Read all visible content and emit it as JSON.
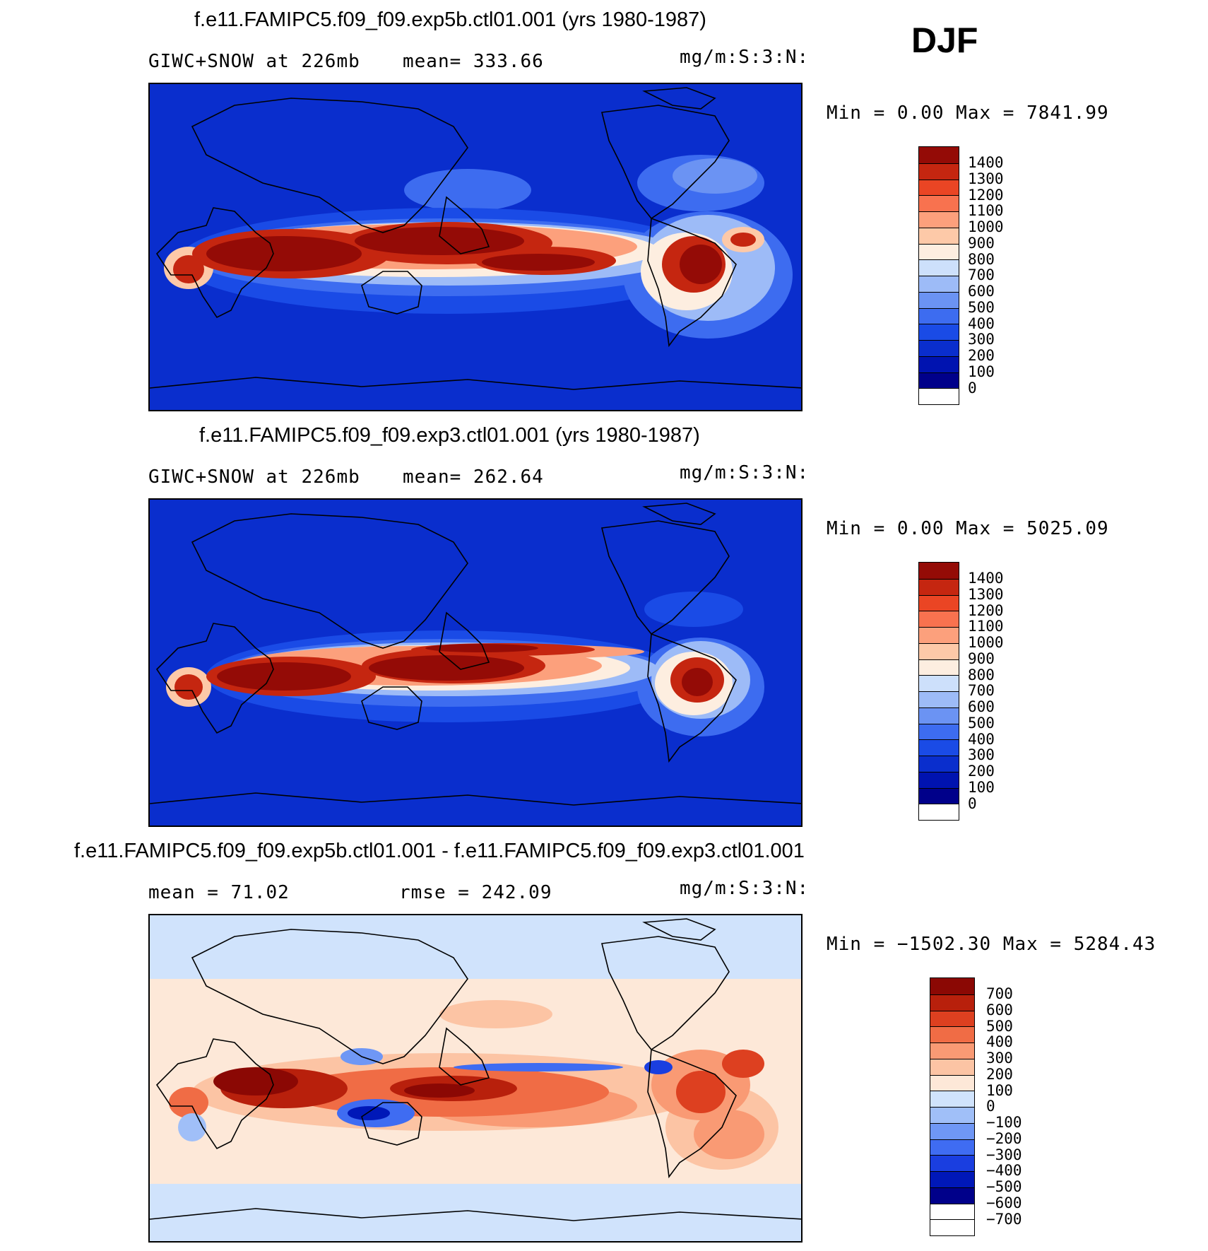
{
  "season": "DJF",
  "colors": {
    "seq": [
      "#00008a",
      "#0013b0",
      "#0a2ecd",
      "#1a4be6",
      "#3d6cf0",
      "#6b93f3",
      "#9dbbf7",
      "#cde0fb",
      "#fdeee0",
      "#fdc9a8",
      "#fca07c",
      "#f8724f",
      "#ea4524",
      "#c52610",
      "#940b06"
    ],
    "div": [
      "#00008a",
      "#0018b8",
      "#1a3ee0",
      "#3f6cf2",
      "#6f97f5",
      "#a0bff8",
      "#d0e3fc",
      "#fde8d8",
      "#fcc4a4",
      "#f99a74",
      "#f06c45",
      "#dd4020",
      "#b8200c",
      "#8b0804"
    ]
  },
  "panels": [
    {
      "title": "f.e11.FAMIPC5.f09_f09.exp5b.ctl01.001 (yrs 1980-1987)",
      "left_text": "GIWC+SNOW at 226mb",
      "mid_text": "mean= 333.66",
      "units": "mg/m:S:3:N:",
      "minmax": "Min =    0.00 Max = 7841.99",
      "colorbar_labels": [
        "1400",
        "1300",
        "1200",
        "1100",
        "1000",
        "900",
        "800",
        "700",
        "600",
        "500",
        "400",
        "300",
        "200",
        "100",
        "0"
      ]
    },
    {
      "title": "f.e11.FAMIPC5.f09_f09.exp3.ctl01.001 (yrs 1980-1987)",
      "left_text": "GIWC+SNOW at 226mb",
      "mid_text": "mean= 262.64",
      "units": "mg/m:S:3:N:",
      "minmax": "Min =    0.00 Max = 5025.09",
      "colorbar_labels": [
        "1400",
        "1300",
        "1200",
        "1100",
        "1000",
        "900",
        "800",
        "700",
        "600",
        "500",
        "400",
        "300",
        "200",
        "100",
        "0"
      ]
    },
    {
      "title": "f.e11.FAMIPC5.f09_f09.exp5b.ctl01.001 - f.e11.FAMIPC5.f09_f09.exp3.ctl01.001",
      "left_text": "mean =   71.02",
      "mid_text": "rmse = 242.09",
      "units": "mg/m:S:3:N:",
      "minmax": "Min = −1502.30 Max = 5284.43",
      "colorbar_labels": [
        "700",
        "600",
        "500",
        "400",
        "300",
        "200",
        "100",
        "0",
        "−100",
        "−200",
        "−300",
        "−400",
        "−500",
        "−600",
        "−700"
      ]
    }
  ]
}
